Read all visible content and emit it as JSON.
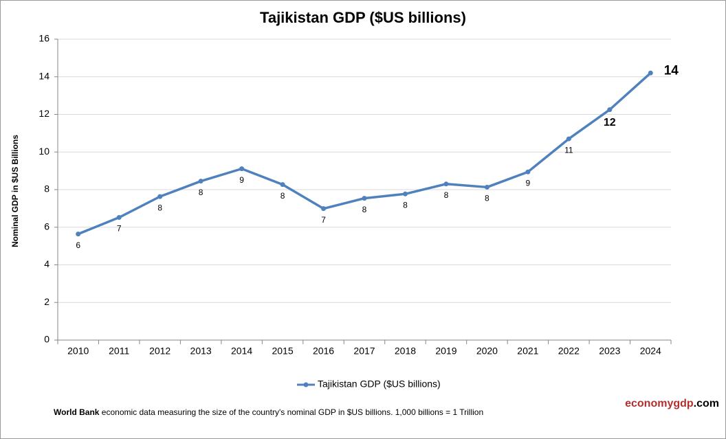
{
  "chart_data": {
    "type": "line",
    "title": "Tajikistan GDP ($US billions)",
    "y_label": "Nominal GDP in $US Billions",
    "categories": [
      "2010",
      "2011",
      "2012",
      "2013",
      "2014",
      "2015",
      "2016",
      "2017",
      "2018",
      "2019",
      "2020",
      "2021",
      "2022",
      "2023",
      "2024"
    ],
    "series": [
      {
        "name": "Tajikistan GDP ($US billions)",
        "color": "#4f81bd",
        "values": [
          5.64,
          6.52,
          7.63,
          8.45,
          9.11,
          8.27,
          6.99,
          7.54,
          7.77,
          8.3,
          8.13,
          8.94,
          10.7,
          12.25,
          14.2
        ],
        "value_labels": [
          "6",
          "7",
          "8",
          "8",
          "9",
          "8",
          "7",
          "8",
          "8",
          "8",
          "8",
          "9",
          "11",
          "12",
          "14"
        ]
      }
    ],
    "ylim": [
      0,
      16
    ],
    "yticks": [
      0,
      2,
      4,
      6,
      8,
      10,
      12,
      14,
      16
    ],
    "grid": true,
    "legend": "bottom"
  },
  "footer": {
    "source": "World Bank",
    "text": "economic data  measuring the size of the country's nominal GDP in $US billions. 1,000 billions = 1 Trillion"
  },
  "watermark": {
    "brand": "economygdp",
    "suffix": ".com"
  }
}
